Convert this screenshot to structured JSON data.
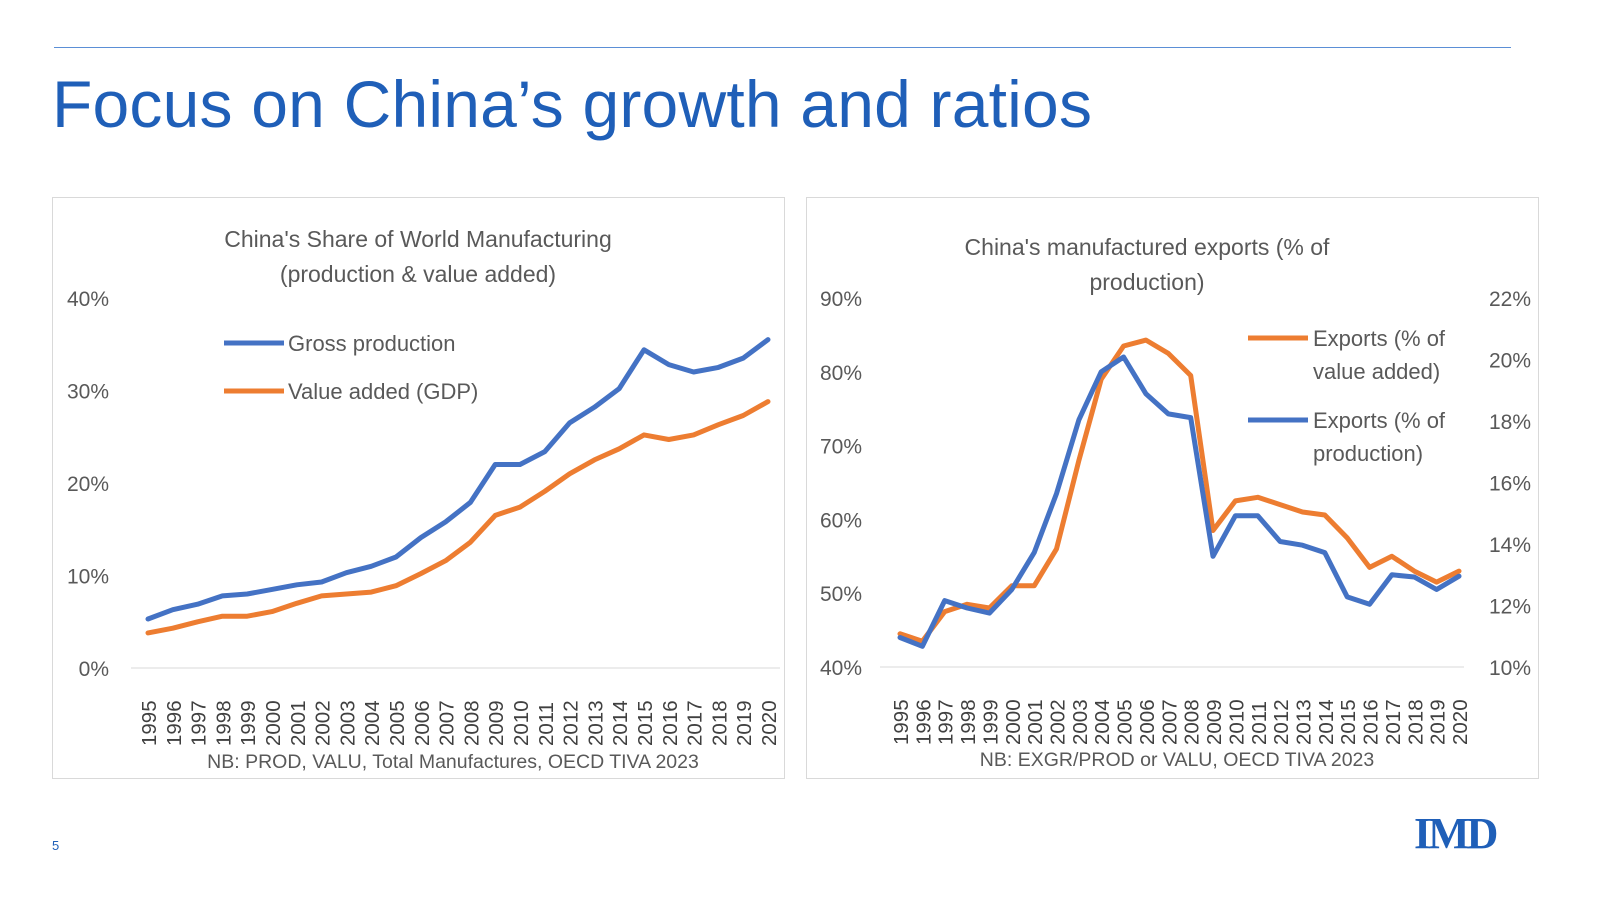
{
  "slide": {
    "title": "Focus on China’s growth and ratios",
    "page_number": "5",
    "logo_text": "IMD",
    "colors": {
      "accent": "#1f5fb8",
      "rule": "#5b8fd6"
    }
  },
  "chart_data": [
    {
      "type": "line",
      "title": "China's Share of World Manufacturing",
      "subtitle": "(production & value added)",
      "note": "NB: PROD, VALU, Total Manufactures, OECD TIVA 2023",
      "categories": [
        "1995",
        "1996",
        "1997",
        "1998",
        "1999",
        "2000",
        "2001",
        "2002",
        "2003",
        "2004",
        "2005",
        "2006",
        "2007",
        "2008",
        "2009",
        "2010",
        "2011",
        "2012",
        "2013",
        "2014",
        "2015",
        "2016",
        "2017",
        "2018",
        "2019",
        "2020"
      ],
      "ylim": [
        0,
        40
      ],
      "yticks": [
        "0%",
        "10%",
        "20%",
        "30%",
        "40%"
      ],
      "grid": false,
      "legend_position": "top-left",
      "series": [
        {
          "name": "Gross production",
          "color": "#4472c4",
          "values": [
            5.3,
            6.3,
            6.9,
            7.8,
            8.0,
            8.5,
            9.0,
            9.3,
            10.3,
            11.0,
            12.0,
            14.1,
            15.8,
            17.9,
            22.0,
            22.0,
            23.4,
            26.5,
            28.2,
            30.2,
            34.4,
            32.8,
            32.0,
            32.5,
            33.5,
            35.5
          ]
        },
        {
          "name": "Value added (GDP)",
          "color": "#ed7d31",
          "values": [
            3.8,
            4.3,
            5.0,
            5.6,
            5.6,
            6.1,
            7.0,
            7.8,
            8.0,
            8.2,
            8.9,
            10.2,
            11.6,
            13.6,
            16.5,
            17.4,
            19.1,
            21.0,
            22.5,
            23.7,
            25.2,
            24.7,
            25.2,
            26.3,
            27.3,
            28.8
          ]
        }
      ]
    },
    {
      "type": "line",
      "title": "China's manufactured exports (% of",
      "subtitle": "production)",
      "note": "NB: EXGR/PROD or VALU, OECD TIVA 2023",
      "categories": [
        "1995",
        "1996",
        "1997",
        "1998",
        "1999",
        "2000",
        "2001",
        "2002",
        "2003",
        "2004",
        "2005",
        "2006",
        "2007",
        "2008",
        "2009",
        "2010",
        "2011",
        "2012",
        "2013",
        "2014",
        "2015",
        "2016",
        "2017",
        "2018",
        "2019",
        "2020"
      ],
      "ylim_left": [
        40,
        90
      ],
      "yticks_left": [
        "40%",
        "50%",
        "60%",
        "70%",
        "80%",
        "90%"
      ],
      "ylim_right": [
        10,
        22
      ],
      "yticks_right": [
        "10%",
        "12%",
        "14%",
        "16%",
        "18%",
        "20%",
        "22%"
      ],
      "grid": false,
      "legend_position": "top-right",
      "series": [
        {
          "name_lines": [
            "Exports (% of",
            "value added)"
          ],
          "color": "#ed7d31",
          "axis": "left",
          "values": [
            44.5,
            43.5,
            47.5,
            48.5,
            48.0,
            51.0,
            51.0,
            56.0,
            68.0,
            79.0,
            83.5,
            84.3,
            82.5,
            79.5,
            58.5,
            62.5,
            63.0,
            62.0,
            61.0,
            60.6,
            57.5,
            53.5,
            55.0,
            53.0,
            51.5,
            53.0
          ]
        },
        {
          "name_lines": [
            "Exports (% of",
            "production)"
          ],
          "color": "#4472c4",
          "axis": "left",
          "values": [
            44.0,
            42.8,
            49.0,
            48.0,
            47.3,
            50.5,
            55.5,
            63.5,
            73.5,
            80.0,
            82.0,
            77.0,
            74.3,
            73.8,
            55.0,
            60.5,
            60.5,
            57.0,
            56.5,
            55.5,
            49.5,
            48.5,
            52.5,
            52.2,
            50.5,
            52.3
          ]
        }
      ]
    }
  ]
}
